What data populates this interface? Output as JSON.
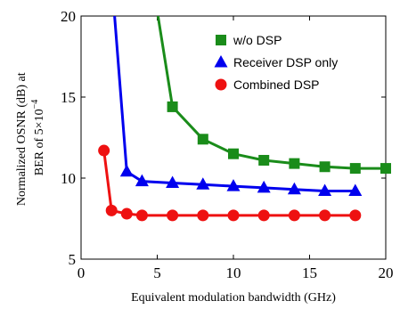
{
  "chart_data": {
    "type": "line",
    "xlabel": "Equivalent modulation bandwidth (GHz)",
    "ylabel_lines": [
      "Normalized OSNR (dB) at",
      "BER of 5×10",
      "−4"
    ],
    "xlim": [
      0,
      20
    ],
    "ylim": [
      5,
      20
    ],
    "xticks": [
      "0",
      "5",
      "10",
      "15",
      "20"
    ],
    "yticks": [
      "5",
      "10",
      "15",
      "20"
    ],
    "grid": false,
    "legend_position": "top-right",
    "series": [
      {
        "name": "w/o DSP",
        "marker": "square",
        "color": "#1a8c1a",
        "x": [
          5.05,
          6,
          8,
          10,
          12,
          14,
          16,
          18,
          20
        ],
        "y": [
          20,
          14.4,
          12.4,
          11.5,
          11.1,
          10.9,
          10.7,
          10.6,
          10.6
        ],
        "marker_mask": [
          false,
          true,
          true,
          true,
          true,
          true,
          true,
          true,
          true
        ]
      },
      {
        "name": "Receiver DSP only",
        "marker": "triangle",
        "color": "#0000ee",
        "x": [
          2.2,
          3,
          4,
          6,
          8,
          10,
          12,
          14,
          16,
          18
        ],
        "y": [
          20,
          10.4,
          9.8,
          9.7,
          9.6,
          9.5,
          9.4,
          9.3,
          9.2,
          9.2
        ],
        "marker_mask": [
          false,
          true,
          true,
          true,
          true,
          true,
          true,
          true,
          true,
          true
        ]
      },
      {
        "name": "Combined DSP",
        "marker": "circle",
        "color": "#ee1111",
        "x": [
          1.5,
          2,
          3,
          4,
          6,
          8,
          10,
          12,
          14,
          16,
          18
        ],
        "y": [
          11.7,
          8.0,
          7.8,
          7.7,
          7.7,
          7.7,
          7.7,
          7.7,
          7.7,
          7.7,
          7.7
        ],
        "marker_mask": [
          true,
          true,
          true,
          true,
          true,
          true,
          true,
          true,
          true,
          true,
          true
        ]
      }
    ]
  }
}
